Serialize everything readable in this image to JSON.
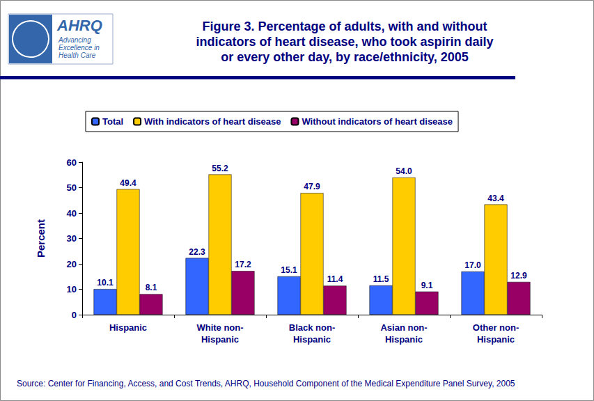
{
  "chart_data": {
    "type": "bar",
    "title": "Figure 3. Percentage of adults, with and without\nindicators of heart disease, who took aspirin daily\nor every other day, by race/ethnicity, 2005",
    "logo": {
      "name": "AHRQ",
      "tagline": "Advancing\nExcellence in\nHealth Care"
    },
    "source": "Source: Center for Financing, Access, and Cost Trends, AHRQ, Household Component of the Medical Expenditure Panel Survey, 2005",
    "y_label": "Percent",
    "categories": [
      "Hispanic",
      "White non-\nHispanic",
      "Black non-\nHispanic",
      "Asian non-\nHispanic",
      "Other non-\nHispanic"
    ],
    "series": [
      {
        "name": "Total",
        "color": "#3366ff",
        "values": [
          10.1,
          22.3,
          15.1,
          11.5,
          17.0
        ],
        "value_labels": [
          "10.1",
          "22.3",
          "15.1",
          "11.5",
          "17.0"
        ]
      },
      {
        "name": "With indicators of heart disease",
        "color": "#ffcc00",
        "values": [
          49.4,
          55.2,
          47.9,
          54.0,
          43.4
        ],
        "value_labels": [
          "49.4",
          "55.2",
          "47.9",
          "54.0",
          "43.4"
        ]
      },
      {
        "name": "Without indicators of heart disease",
        "color": "#990066",
        "values": [
          8.1,
          17.2,
          11.4,
          9.1,
          12.9
        ],
        "value_labels": [
          "8.1",
          "17.2",
          "11.4",
          "9.1",
          "12.9"
        ]
      }
    ],
    "ylim": [
      0,
      60
    ],
    "yticks": [
      0,
      10,
      20,
      30,
      40,
      50,
      60
    ],
    "grid": false,
    "legend": "top",
    "data_labels": true
  }
}
